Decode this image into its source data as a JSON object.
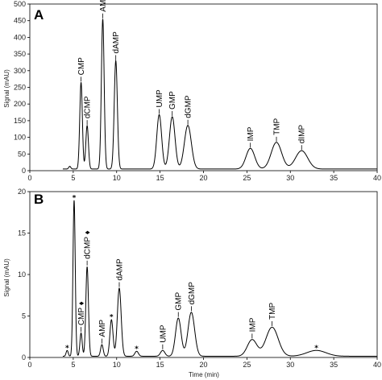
{
  "chart_data": [
    {
      "panel": "A",
      "type": "line",
      "xlabel": "",
      "ylabel": "Signal (mAU)",
      "xlim": [
        0,
        40
      ],
      "ylim": [
        0,
        500
      ],
      "xticks": [
        0,
        5,
        10,
        15,
        20,
        25,
        30,
        35,
        40
      ],
      "yticks": [
        0,
        50,
        100,
        150,
        200,
        250,
        300,
        350,
        400,
        450,
        500
      ],
      "baseline": 5,
      "peaks": [
        {
          "label": "",
          "rt": 4.6,
          "height": 8,
          "width": 0.12
        },
        {
          "label": "CMP",
          "rt": 5.9,
          "height": 260,
          "width": 0.15
        },
        {
          "label": "dCMP",
          "rt": 6.6,
          "height": 130,
          "width": 0.15
        },
        {
          "label": "AMP",
          "rt": 8.4,
          "height": 450,
          "width": 0.16
        },
        {
          "label": "dAMP",
          "rt": 9.9,
          "height": 325,
          "width": 0.18
        },
        {
          "label": "UMP",
          "rt": 14.9,
          "height": 163,
          "width": 0.28
        },
        {
          "label": "GMP",
          "rt": 16.4,
          "height": 157,
          "width": 0.32
        },
        {
          "label": "dGMP",
          "rt": 18.2,
          "height": 131,
          "width": 0.4
        },
        {
          "label": "IMP",
          "rt": 25.4,
          "height": 62,
          "width": 0.5
        },
        {
          "label": "TMP",
          "rt": 28.4,
          "height": 80,
          "width": 0.6
        },
        {
          "label": "dIMP",
          "rt": 31.3,
          "height": 55,
          "width": 0.7
        }
      ]
    },
    {
      "panel": "B",
      "type": "line",
      "xlabel": "Time (min)",
      "ylabel": "Signal (mAU)",
      "xlim": [
        0,
        40
      ],
      "ylim": [
        0,
        20
      ],
      "xticks": [
        0,
        5,
        10,
        15,
        20,
        25,
        30,
        35,
        40
      ],
      "yticks": [
        0,
        5,
        10,
        15,
        20
      ],
      "baseline": 0.15,
      "peaks": [
        {
          "label": "*",
          "rt": 4.3,
          "height": 0.7,
          "width": 0.12
        },
        {
          "label": "*",
          "rt": 5.1,
          "height": 18.8,
          "width": 0.13
        },
        {
          "label": "CMP ♦",
          "rt": 5.9,
          "height": 2.8,
          "width": 0.13
        },
        {
          "label": "dCMP ♦",
          "rt": 6.6,
          "height": 10.8,
          "width": 0.15
        },
        {
          "label": "AMP",
          "rt": 8.3,
          "height": 1.4,
          "width": 0.15
        },
        {
          "label": "*",
          "rt": 9.4,
          "height": 4.4,
          "width": 0.18
        },
        {
          "label": "dAMP",
          "rt": 10.3,
          "height": 8.2,
          "width": 0.22
        },
        {
          "label": "*",
          "rt": 12.3,
          "height": 0.6,
          "width": 0.2
        },
        {
          "label": "UMP",
          "rt": 15.3,
          "height": 0.7,
          "width": 0.25
        },
        {
          "label": "GMP",
          "rt": 17.1,
          "height": 4.6,
          "width": 0.32
        },
        {
          "label": "dGMP",
          "rt": 18.6,
          "height": 5.3,
          "width": 0.38
        },
        {
          "label": "IMP",
          "rt": 25.6,
          "height": 2.0,
          "width": 0.55
        },
        {
          "label": "TMP",
          "rt": 27.9,
          "height": 3.5,
          "width": 0.7
        },
        {
          "label": "*",
          "rt": 33.0,
          "height": 0.7,
          "width": 1.1
        }
      ]
    }
  ]
}
